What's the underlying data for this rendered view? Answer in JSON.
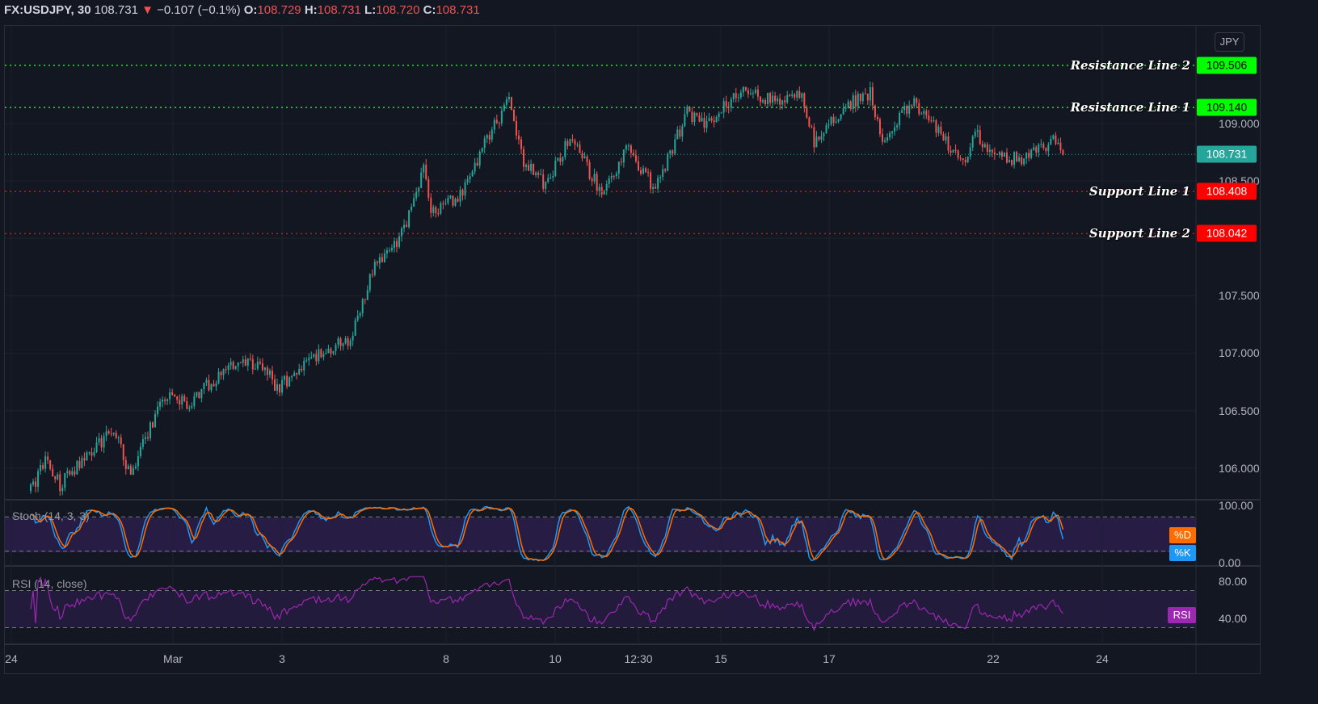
{
  "header": {
    "symbol": "FX:USDJPY, 30",
    "last": "108.731",
    "direction_icon": "triangle-down-icon",
    "change": "−0.107 (−0.1%)",
    "open_label": "O:",
    "open": "108.729",
    "high_label": "H:",
    "high": "108.731",
    "low_label": "L:",
    "low": "108.720",
    "close_label": "C:",
    "close": "108.731"
  },
  "currency_button": "JPY",
  "price_axis": [
    "109.000",
    "108.500",
    "107.500",
    "107.000",
    "106.500",
    "106.000"
  ],
  "current_price": {
    "value": 108.731,
    "label": "108.731",
    "color": "#26a69a"
  },
  "levels": [
    {
      "name": "Resistance Line 2",
      "value": 109.506,
      "label": "109.506",
      "color": "#00ff00"
    },
    {
      "name": "Resistance Line 1",
      "value": 109.14,
      "label": "109.140",
      "color": "#00ff00"
    },
    {
      "name": "Support Line 1",
      "value": 108.408,
      "label": "108.408",
      "color": "#ff0000"
    },
    {
      "name": "Support Line 2",
      "value": 108.042,
      "label": "108.042",
      "color": "#ff0000"
    }
  ],
  "stoch": {
    "title": "Stoch (14, 3, 3)",
    "axis": [
      "100.00",
      "0.00"
    ],
    "d_label": "%D",
    "k_label": "%K",
    "d_color": "#ff6d00",
    "k_color": "#2196f3",
    "upper_band": 80,
    "lower_band": 20
  },
  "rsi": {
    "title": "RSI (14, close)",
    "axis": [
      "80.00",
      "40.00"
    ],
    "label": "RSI",
    "color": "#9c27b0",
    "upper_band": 70,
    "lower_band": 30
  },
  "time_axis": [
    "24",
    "Mar",
    "3",
    "8",
    "10",
    "12:30",
    "15",
    "17",
    "22",
    "24"
  ],
  "chart_data": {
    "type": "candlestick",
    "interval": "30",
    "ylim": [
      105.7,
      109.9
    ],
    "up_color": "#26a69a",
    "down_color": "#ef5350",
    "approx_close_path": [
      [
        0,
        105.8
      ],
      [
        6,
        106.07
      ],
      [
        12,
        105.86
      ],
      [
        34,
        106.35
      ],
      [
        41,
        105.93
      ],
      [
        54,
        106.63
      ],
      [
        64,
        106.56
      ],
      [
        81,
        106.88
      ],
      [
        94,
        106.91
      ],
      [
        101,
        106.7
      ],
      [
        117,
        106.98
      ],
      [
        131,
        107.12
      ],
      [
        141,
        107.76
      ],
      [
        151,
        107.97
      ],
      [
        161,
        108.6
      ],
      [
        164,
        108.21
      ],
      [
        177,
        108.39
      ],
      [
        187,
        108.88
      ],
      [
        196,
        109.2
      ],
      [
        202,
        108.67
      ],
      [
        211,
        108.46
      ],
      [
        221,
        108.88
      ],
      [
        234,
        108.39
      ],
      [
        244,
        108.78
      ],
      [
        256,
        108.43
      ],
      [
        269,
        109.1
      ],
      [
        277,
        108.99
      ],
      [
        291,
        109.3
      ],
      [
        304,
        109.2
      ],
      [
        316,
        109.23
      ],
      [
        321,
        108.85
      ],
      [
        334,
        109.16
      ],
      [
        344,
        109.27
      ],
      [
        349,
        108.81
      ],
      [
        361,
        109.2
      ],
      [
        371,
        108.95
      ],
      [
        382,
        108.67
      ],
      [
        387,
        108.92
      ],
      [
        396,
        108.7
      ],
      [
        407,
        108.7
      ],
      [
        419,
        108.85
      ],
      [
        423,
        108.731
      ]
    ]
  }
}
